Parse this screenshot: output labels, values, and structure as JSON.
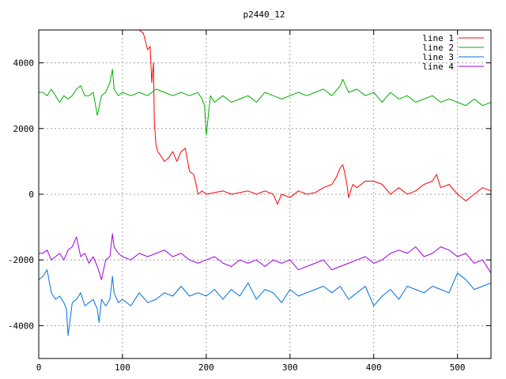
{
  "chart_data": {
    "type": "line",
    "title": "p2440_12",
    "xlabel": "",
    "ylabel": "",
    "xlim": [
      0,
      540
    ],
    "ylim": [
      -5000,
      5000
    ],
    "xticks": [
      0,
      100,
      200,
      300,
      400,
      500
    ],
    "yticks": [
      -4000,
      -2000,
      0,
      2000,
      4000
    ],
    "xtick_labels": [
      "0",
      "100",
      "200",
      "300",
      "400",
      "500"
    ],
    "ytick_labels": [
      "-4000",
      "-2000",
      "0",
      "2000",
      "4000"
    ],
    "grid": true,
    "legend": "top-right",
    "series": [
      {
        "name": "line 1",
        "color": "#ff0000",
        "x": [
          120,
          125,
          130,
          133,
          135,
          137,
          138,
          140,
          142,
          145,
          150,
          155,
          160,
          165,
          170,
          175,
          180,
          185,
          188,
          190,
          195,
          200,
          210,
          220,
          230,
          240,
          250,
          260,
          270,
          280,
          285,
          290,
          300,
          310,
          320,
          330,
          340,
          350,
          355,
          360,
          363,
          365,
          368,
          370,
          375,
          380,
          390,
          400,
          410,
          420,
          430,
          440,
          450,
          460,
          470,
          475,
          480,
          490,
          500,
          510,
          520,
          530,
          540
        ],
        "y": [
          5000,
          4900,
          4400,
          4500,
          3400,
          4000,
          2200,
          1500,
          1300,
          1200,
          1000,
          1100,
          1300,
          1000,
          1300,
          1400,
          700,
          600,
          300,
          0,
          100,
          0,
          50,
          100,
          0,
          50,
          100,
          0,
          100,
          0,
          -300,
          0,
          -100,
          100,
          0,
          50,
          200,
          300,
          500,
          800,
          900,
          700,
          300,
          -100,
          300,
          200,
          400,
          400,
          300,
          0,
          200,
          0,
          100,
          300,
          400,
          600,
          200,
          300,
          0,
          -200,
          0,
          200,
          100
        ]
      },
      {
        "name": "line 2",
        "color": "#00b000",
        "x": [
          0,
          5,
          10,
          15,
          20,
          25,
          30,
          35,
          40,
          45,
          50,
          55,
          60,
          65,
          70,
          75,
          80,
          85,
          88,
          90,
          95,
          100,
          110,
          120,
          130,
          140,
          150,
          160,
          170,
          180,
          190,
          195,
          198,
          200,
          205,
          210,
          220,
          230,
          240,
          250,
          260,
          270,
          280,
          290,
          300,
          310,
          320,
          330,
          340,
          350,
          360,
          363,
          370,
          380,
          390,
          400,
          410,
          420,
          430,
          440,
          450,
          460,
          470,
          480,
          490,
          500,
          510,
          520,
          530,
          540
        ],
        "y": [
          3100,
          3100,
          3000,
          3200,
          3000,
          2800,
          3000,
          2900,
          3000,
          3200,
          3300,
          3000,
          3000,
          3100,
          2400,
          3000,
          3100,
          3400,
          3800,
          3200,
          3000,
          3100,
          3000,
          3100,
          3000,
          3200,
          3100,
          3000,
          3100,
          3000,
          3100,
          2900,
          2700,
          1800,
          3000,
          2800,
          3000,
          2800,
          2900,
          3000,
          2800,
          3100,
          3000,
          2900,
          3000,
          3100,
          3000,
          3100,
          3200,
          3000,
          3300,
          3500,
          3100,
          3200,
          3000,
          3100,
          2800,
          3100,
          2900,
          3000,
          2800,
          2900,
          3000,
          2800,
          2900,
          2800,
          2700,
          2900,
          2700,
          2800
        ]
      },
      {
        "name": "line 3",
        "color": "#0070e0",
        "x": [
          0,
          5,
          10,
          15,
          20,
          25,
          30,
          33,
          35,
          40,
          45,
          50,
          55,
          60,
          65,
          70,
          72,
          75,
          80,
          85,
          88,
          90,
          95,
          100,
          110,
          120,
          130,
          140,
          150,
          160,
          170,
          180,
          190,
          200,
          210,
          220,
          230,
          240,
          250,
          260,
          270,
          280,
          290,
          300,
          310,
          320,
          330,
          340,
          350,
          360,
          370,
          380,
          390,
          400,
          410,
          420,
          430,
          440,
          450,
          460,
          470,
          480,
          490,
          500,
          510,
          520,
          530,
          540
        ],
        "y": [
          -2600,
          -2500,
          -2300,
          -3000,
          -3200,
          -3100,
          -3300,
          -3500,
          -4300,
          -3300,
          -3200,
          -3000,
          -3400,
          -3300,
          -3200,
          -3500,
          -3900,
          -3200,
          -3400,
          -3200,
          -2500,
          -3000,
          -3300,
          -3200,
          -3400,
          -3000,
          -3300,
          -3200,
          -3000,
          -3100,
          -2800,
          -3100,
          -3000,
          -3100,
          -2900,
          -3200,
          -2900,
          -3100,
          -2700,
          -3200,
          -2900,
          -3000,
          -3300,
          -2900,
          -3100,
          -3000,
          -2900,
          -2800,
          -3000,
          -2800,
          -3200,
          -3000,
          -2800,
          -3400,
          -3100,
          -2900,
          -3200,
          -2800,
          -2900,
          -3000,
          -2800,
          -2900,
          -3000,
          -2400,
          -2600,
          -2900,
          -2800,
          -2700
        ]
      },
      {
        "name": "line 4",
        "color": "#a000e0",
        "x": [
          0,
          5,
          10,
          15,
          20,
          25,
          30,
          35,
          40,
          45,
          50,
          55,
          60,
          65,
          70,
          75,
          80,
          85,
          88,
          90,
          95,
          100,
          110,
          120,
          130,
          140,
          150,
          160,
          170,
          180,
          190,
          200,
          210,
          220,
          230,
          240,
          250,
          260,
          270,
          280,
          290,
          300,
          310,
          320,
          330,
          340,
          350,
          360,
          370,
          380,
          390,
          400,
          410,
          420,
          430,
          440,
          450,
          460,
          470,
          480,
          490,
          500,
          510,
          520,
          530,
          540
        ],
        "y": [
          -1800,
          -1800,
          -1700,
          -2000,
          -1900,
          -1800,
          -2000,
          -1700,
          -1600,
          -1300,
          -1900,
          -1800,
          -2100,
          -1900,
          -2200,
          -2600,
          -2000,
          -1900,
          -1200,
          -1600,
          -1800,
          -1900,
          -2000,
          -1800,
          -1900,
          -1800,
          -1700,
          -1900,
          -1800,
          -2000,
          -2100,
          -2000,
          -1900,
          -2100,
          -2200,
          -2000,
          -2100,
          -2000,
          -2200,
          -2000,
          -2100,
          -2000,
          -2300,
          -2200,
          -2100,
          -2000,
          -2300,
          -2200,
          -2100,
          -2000,
          -1900,
          -2100,
          -2000,
          -1800,
          -1700,
          -1800,
          -1600,
          -1900,
          -1800,
          -1600,
          -1700,
          -1900,
          -1800,
          -2100,
          -2000,
          -2400
        ]
      }
    ]
  }
}
